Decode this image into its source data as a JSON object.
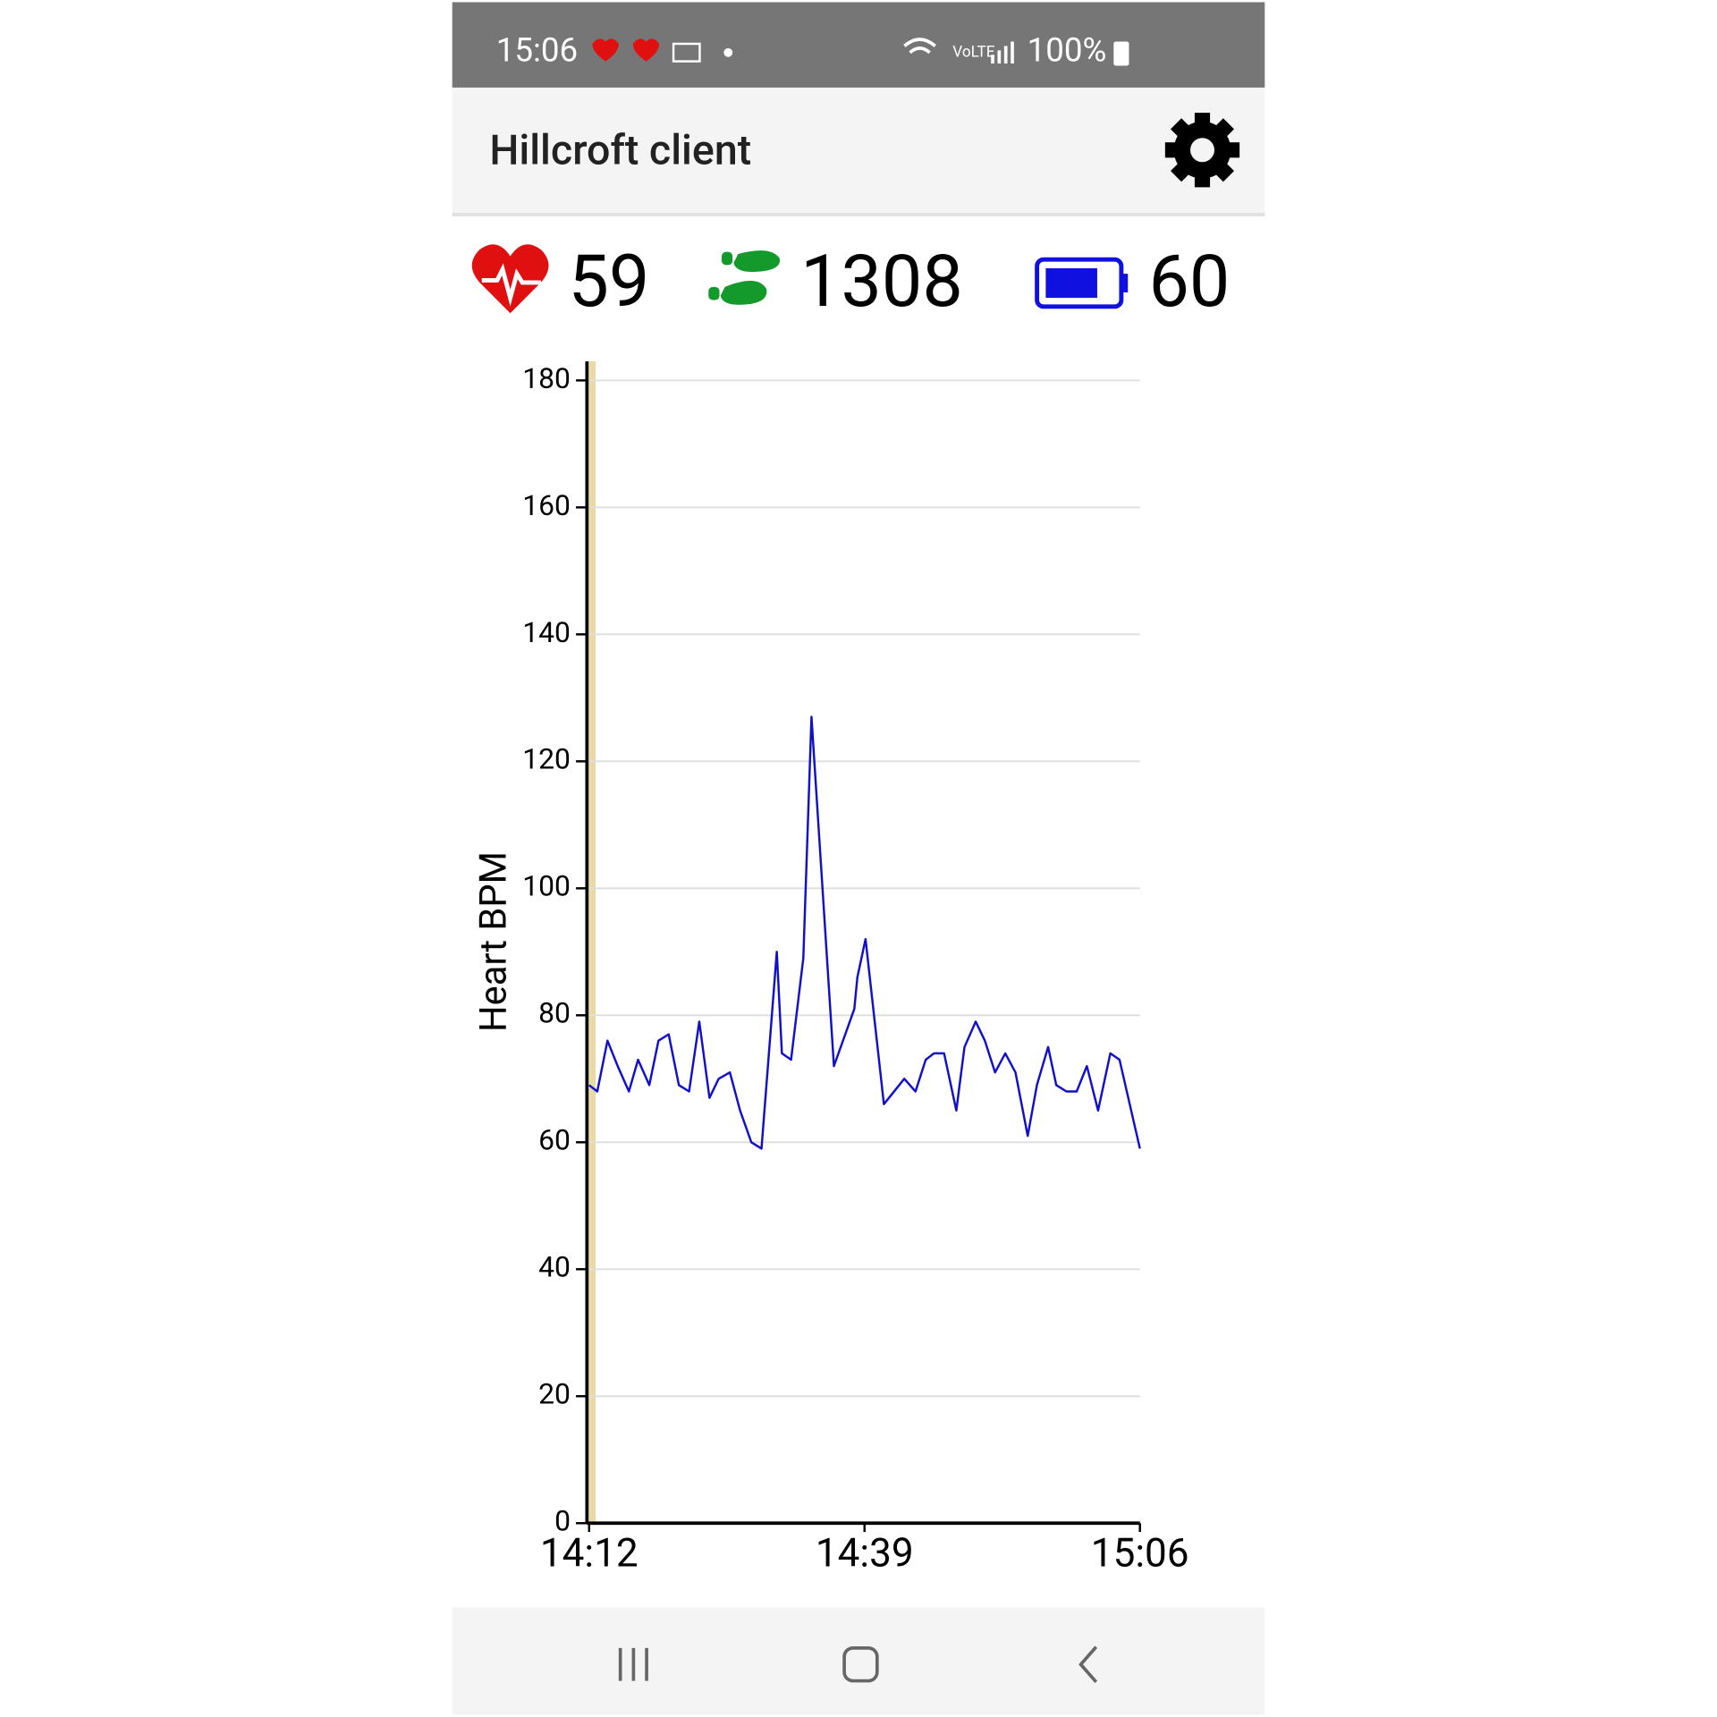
{
  "status_bar": {
    "time": "15:06",
    "battery": "100%"
  },
  "app_bar": {
    "title": "Hillcroft client"
  },
  "stats": {
    "heart_rate": 59,
    "steps": 1308,
    "battery": 60
  },
  "chart_data": {
    "type": "line",
    "y_label": "Heart BPM",
    "color": "#1010cc",
    "grid": true,
    "x": [
      852.0,
      852.8,
      853.8,
      854.8,
      855.9,
      856.8,
      857.9,
      858.8,
      859.8,
      860.8,
      861.8,
      862.8,
      863.8,
      864.7,
      865.8,
      866.8,
      867.9,
      868.9,
      870.4,
      870.9,
      871.8,
      873.0,
      873.8,
      876.0,
      878.0,
      878.3,
      879.1,
      880.9,
      882.9,
      884.0,
      885.0,
      885.8,
      886.8,
      888.0,
      888.8,
      889.9,
      890.8,
      891.8,
      892.8,
      893.8,
      895.0,
      895.9,
      897.0,
      897.8,
      898.8,
      899.8,
      900.8,
      901.9,
      903.1,
      904.0,
      906.0
    ],
    "values": [
      69,
      68,
      76,
      72,
      68,
      73,
      69,
      76,
      77,
      69,
      68,
      79,
      67,
      70,
      71,
      65,
      60,
      59,
      90,
      74,
      73,
      89,
      127,
      72,
      81,
      86,
      92,
      66,
      70,
      68,
      73,
      74,
      74,
      65,
      75,
      79,
      76,
      71,
      74,
      71,
      61,
      69,
      75,
      69,
      68,
      68,
      72,
      65,
      74,
      73,
      59
    ],
    "xlim": [
      852,
      906
    ],
    "xticks": [
      {
        "value": 852,
        "label": "14:12"
      },
      {
        "value": 879,
        "label": "14:39"
      },
      {
        "value": 906,
        "label": "15:06"
      }
    ],
    "ylim": [
      0,
      183
    ],
    "yticks": [
      0,
      20,
      40,
      60,
      80,
      100,
      120,
      140,
      160,
      180
    ]
  }
}
